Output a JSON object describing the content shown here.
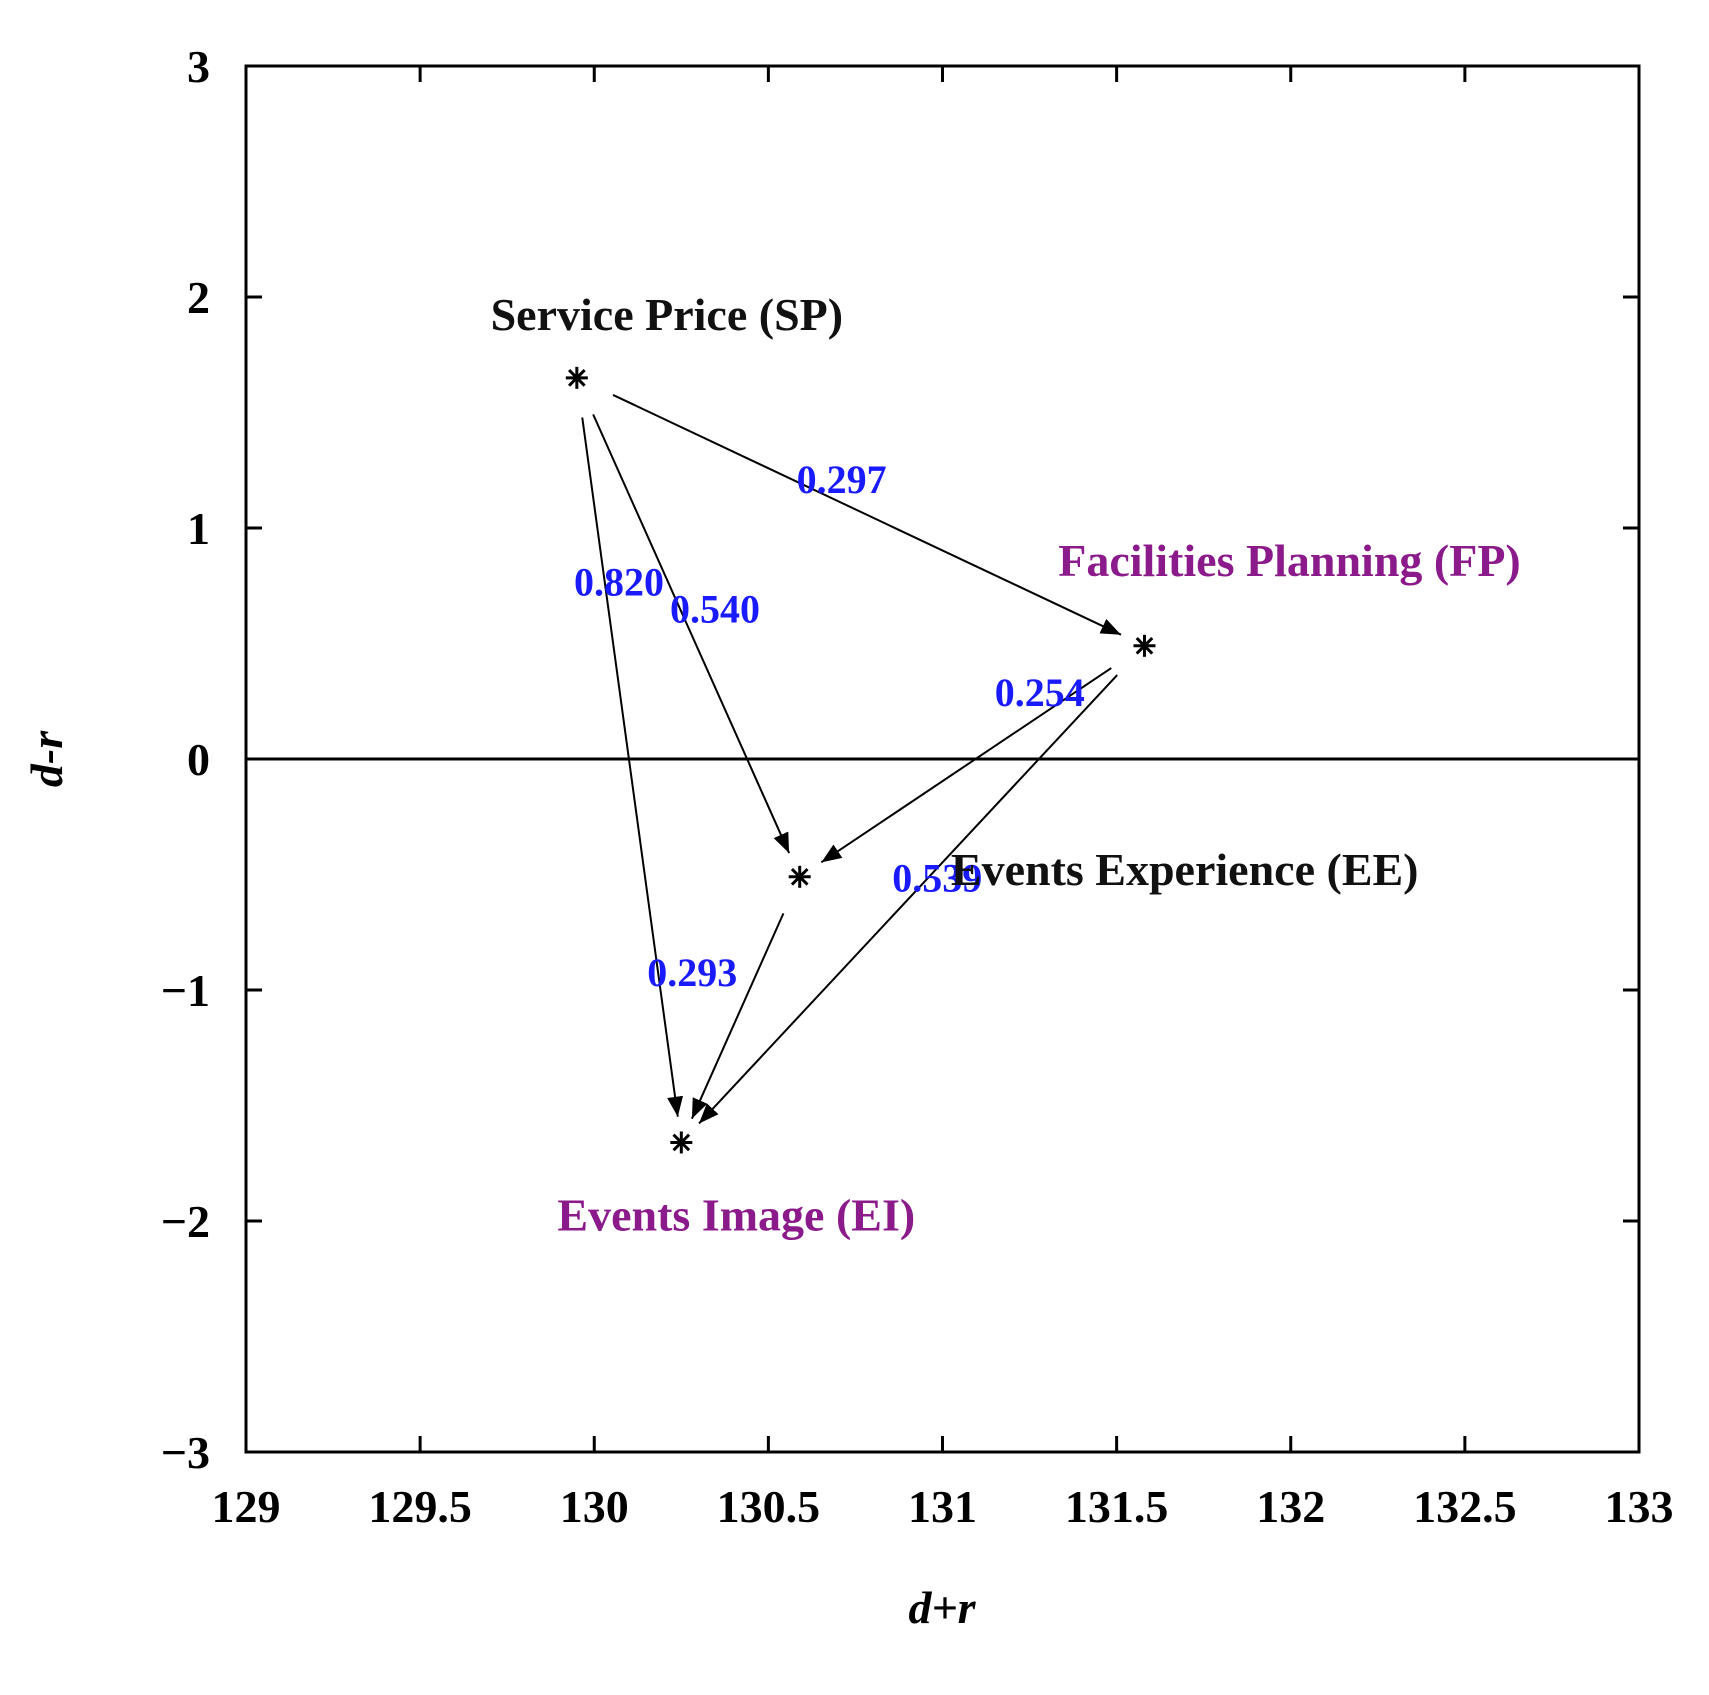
{
  "chart_data": {
    "type": "scatter",
    "title": "",
    "xlabel": "d+r",
    "ylabel": "d-r",
    "xlim": [
      129,
      133
    ],
    "ylim": [
      -3,
      3
    ],
    "xticks": [
      "129",
      "129.5",
      "130",
      "130.5",
      "131",
      "131.5",
      "132",
      "132.5",
      "133"
    ],
    "yticks": [
      "3",
      "2",
      "1",
      "0",
      "−1",
      "−2",
      "−3"
    ],
    "grid": false,
    "reference_line_y": 0,
    "label_color_black": "#111111",
    "label_color_purple": "#8b1a8b",
    "edge_label_color": "#1a1aff",
    "points": [
      {
        "id": "SP",
        "label": "Service Price (SP)",
        "x": 129.95,
        "y": 1.65,
        "color": "#111111"
      },
      {
        "id": "FP",
        "label": "Facilities Planning (FP)",
        "x": 131.58,
        "y": 0.49,
        "color": "#8b1a8b"
      },
      {
        "id": "EE",
        "label": "Events Experience (EE)",
        "x": 130.59,
        "y": -0.51,
        "color": "#111111"
      },
      {
        "id": "EI",
        "label": "Events Image (EI)",
        "x": 130.25,
        "y": -1.66,
        "color": "#8b1a8b"
      }
    ],
    "edges": [
      {
        "from": "SP",
        "to": "FP",
        "weight": "0.297"
      },
      {
        "from": "SP",
        "to": "EI",
        "weight": "0.820"
      },
      {
        "from": "SP",
        "to": "EE",
        "weight": "0.540"
      },
      {
        "from": "FP",
        "to": "EE",
        "weight": "0.254"
      },
      {
        "from": "EE",
        "to": "EI",
        "weight": "0.293"
      },
      {
        "from": "FP",
        "to": "EI",
        "weight": "0.539"
      }
    ]
  }
}
